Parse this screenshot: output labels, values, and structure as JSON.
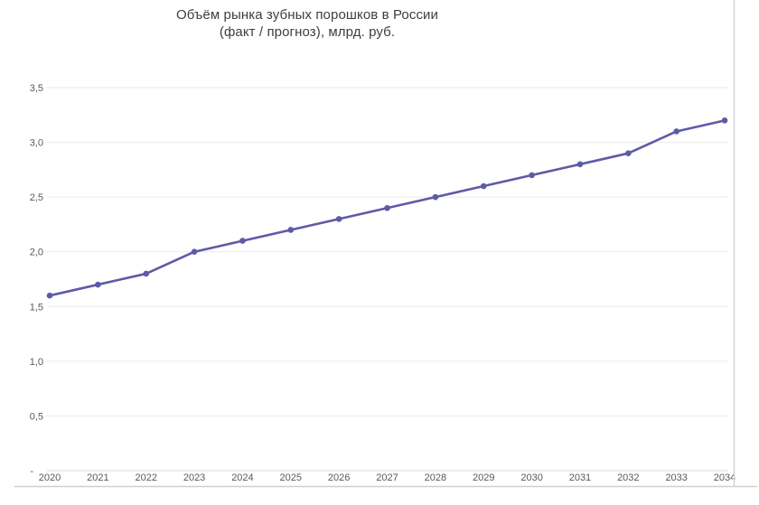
{
  "page": {
    "background": "#ffffff"
  },
  "chart_data": {
    "type": "line",
    "title": "Объём рынка зубных порошков в России (факт / прогноз), млрд. руб.",
    "title_line1": "Объём рынка зубных порошков в России",
    "title_line2": "(факт / прогноз), млрд. руб.",
    "categories": [
      "2020",
      "2021",
      "2022",
      "2023",
      "2024",
      "2025",
      "2026",
      "2027",
      "2028",
      "2029",
      "2030",
      "2031",
      "2032",
      "2033",
      "2034"
    ],
    "values": [
      1.6,
      1.7,
      1.8,
      2.0,
      2.1,
      2.2,
      2.3,
      2.4,
      2.5,
      2.6,
      2.7,
      2.8,
      2.9,
      3.1,
      3.2
    ],
    "xlabel": "",
    "ylabel": "",
    "ylim": [
      0,
      3.5
    ],
    "y_ticks": [
      {
        "value": 3.5,
        "label": "3,5"
      },
      {
        "value": 3.0,
        "label": "3,0"
      },
      {
        "value": 2.5,
        "label": "2,5"
      },
      {
        "value": 2.0,
        "label": "2,0"
      },
      {
        "value": 1.5,
        "label": "1,5"
      },
      {
        "value": 1.0,
        "label": "1,0"
      },
      {
        "value": 0.5,
        "label": "0,5"
      },
      {
        "value": 0,
        "label": "-"
      }
    ],
    "grid": true,
    "legend": "none",
    "colors": {
      "line": "#5e5ba6",
      "marker": "#5e5ba6",
      "grid": "#eaeaea",
      "axis_line": "#dadada",
      "axis_label": "#595959",
      "title": "#3e3e3e",
      "frame": "#cfcfcf"
    }
  }
}
